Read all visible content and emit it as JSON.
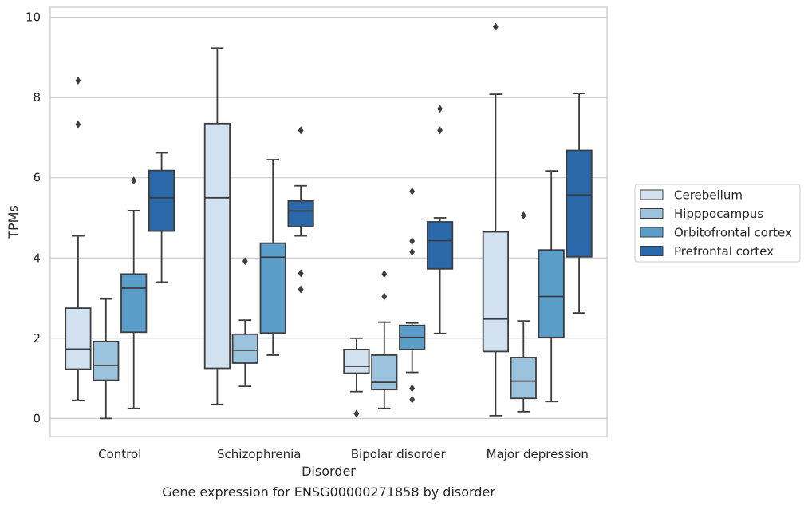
{
  "chart_data": {
    "type": "boxplot",
    "title": "",
    "caption": "Gene expression for ENSG00000271858 by disorder",
    "xlabel": "Disorder",
    "ylabel": "TPMs",
    "ylim": [
      -0.45,
      10.25
    ],
    "yticks": [
      0,
      2,
      4,
      6,
      8,
      10
    ],
    "grid": "horizontal",
    "legend_position": "right",
    "categories": [
      "Control",
      "Schizophrenia",
      "Bipolar disorder",
      "Major depression"
    ],
    "series": [
      {
        "name": "Cerebellum",
        "color": "#d2e1f0",
        "boxes": [
          {
            "low": 0.45,
            "q1": 1.23,
            "median": 1.73,
            "q3": 2.75,
            "high": 4.55,
            "fliers": [
              7.33,
              8.42
            ]
          },
          {
            "low": 0.35,
            "q1": 1.25,
            "median": 5.5,
            "q3": 7.35,
            "high": 9.23,
            "fliers": []
          },
          {
            "low": 0.67,
            "q1": 1.13,
            "median": 1.3,
            "q3": 1.72,
            "high": 2.0,
            "fliers": [
              0.12
            ]
          },
          {
            "low": 0.07,
            "q1": 1.67,
            "median": 2.48,
            "q3": 4.65,
            "high": 8.08,
            "fliers": [
              9.76
            ]
          }
        ]
      },
      {
        "name": "Hipppocampus",
        "color": "#9cc3dd",
        "boxes": [
          {
            "low": 0.0,
            "q1": 0.95,
            "median": 1.32,
            "q3": 1.92,
            "high": 2.98,
            "fliers": []
          },
          {
            "low": 0.8,
            "q1": 1.38,
            "median": 1.7,
            "q3": 2.1,
            "high": 2.45,
            "fliers": [
              3.92
            ]
          },
          {
            "low": 0.25,
            "q1": 0.72,
            "median": 0.9,
            "q3": 1.58,
            "high": 2.4,
            "fliers": [
              3.04,
              3.6
            ]
          },
          {
            "low": 0.17,
            "q1": 0.5,
            "median": 0.93,
            "q3": 1.52,
            "high": 2.43,
            "fliers": [
              5.06
            ]
          }
        ]
      },
      {
        "name": "Orbitofrontal cortex",
        "color": "#5b9dc9",
        "boxes": [
          {
            "low": 0.25,
            "q1": 2.15,
            "median": 3.25,
            "q3": 3.6,
            "high": 5.18,
            "fliers": [
              5.93
            ]
          },
          {
            "low": 1.58,
            "q1": 2.13,
            "median": 4.02,
            "q3": 4.37,
            "high": 6.45,
            "fliers": []
          },
          {
            "low": 1.15,
            "q1": 1.72,
            "median": 2.02,
            "q3": 2.32,
            "high": 2.38,
            "fliers": [
              0.47,
              0.75,
              4.15,
              4.42,
              5.66
            ]
          },
          {
            "low": 0.42,
            "q1": 2.02,
            "median": 3.04,
            "q3": 4.2,
            "high": 6.17,
            "fliers": []
          }
        ]
      },
      {
        "name": "Prefrontal cortex",
        "color": "#2a68aa",
        "boxes": [
          {
            "low": 3.4,
            "q1": 4.67,
            "median": 5.5,
            "q3": 6.18,
            "high": 6.62,
            "fliers": []
          },
          {
            "low": 4.55,
            "q1": 4.78,
            "median": 5.17,
            "q3": 5.42,
            "high": 5.8,
            "fliers": [
              3.22,
              3.62,
              7.18
            ]
          },
          {
            "low": 2.12,
            "q1": 3.73,
            "median": 4.43,
            "q3": 4.9,
            "high": 5.0,
            "fliers": [
              7.18,
              7.72
            ]
          },
          {
            "low": 2.63,
            "q1": 4.03,
            "median": 5.57,
            "q3": 6.68,
            "high": 8.1,
            "fliers": []
          }
        ]
      }
    ]
  }
}
